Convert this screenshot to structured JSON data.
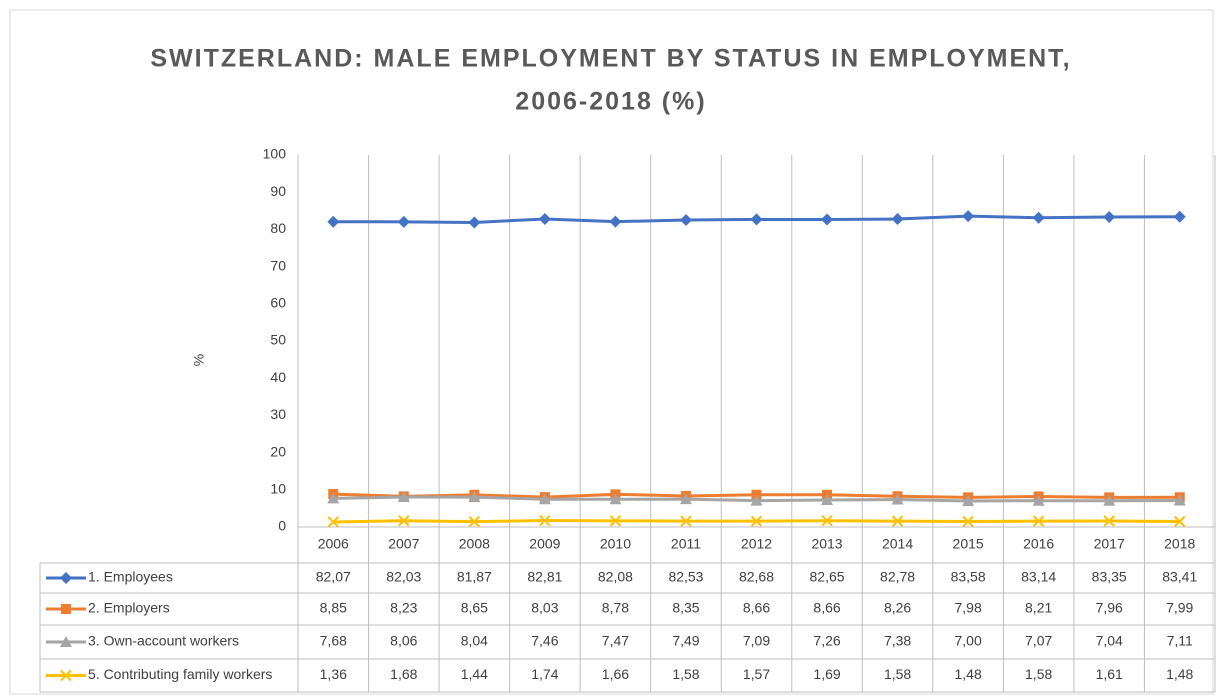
{
  "chart_data": {
    "type": "line",
    "title": [
      "SWITZERLAND: MALE EMPLOYMENT BY STATUS IN EMPLOYMENT,",
      "2006-2018 (%)"
    ],
    "y_label": "%",
    "categories": [
      "2006",
      "2007",
      "2008",
      "2009",
      "2010",
      "2011",
      "2012",
      "2013",
      "2014",
      "2015",
      "2016",
      "2017",
      "2018"
    ],
    "ylim": [
      0,
      100
    ],
    "yticks": [
      0,
      10,
      20,
      30,
      40,
      50,
      60,
      70,
      80,
      90,
      100
    ],
    "series": [
      {
        "name": "1. Employees",
        "color": "#4472c4",
        "marker": "diamond",
        "values": [
          82.07,
          82.03,
          81.87,
          82.81,
          82.08,
          82.53,
          82.68,
          82.65,
          82.78,
          83.58,
          83.14,
          83.35,
          83.41
        ],
        "value_labels": [
          "82,07",
          "82,03",
          "81,87",
          "82,81",
          "82,08",
          "82,53",
          "82,68",
          "82,65",
          "82,78",
          "83,58",
          "83,14",
          "83,35",
          "83,41"
        ]
      },
      {
        "name": "2. Employers",
        "color": "#ed7d31",
        "marker": "square",
        "values": [
          8.85,
          8.23,
          8.65,
          8.03,
          8.78,
          8.35,
          8.66,
          8.66,
          8.26,
          7.98,
          8.21,
          7.96,
          7.99
        ],
        "value_labels": [
          "8,85",
          "8,23",
          "8,65",
          "8,03",
          "8,78",
          "8,35",
          "8,66",
          "8,66",
          "8,26",
          "7,98",
          "8,21",
          "7,96",
          "7,99"
        ]
      },
      {
        "name": "3. Own-account workers",
        "color": "#a5a5a5",
        "marker": "triangle",
        "values": [
          7.68,
          8.06,
          8.04,
          7.46,
          7.47,
          7.49,
          7.09,
          7.26,
          7.38,
          7.0,
          7.07,
          7.04,
          7.11
        ],
        "value_labels": [
          "7,68",
          "8,06",
          "8,04",
          "7,46",
          "7,47",
          "7,49",
          "7,09",
          "7,26",
          "7,38",
          "7,00",
          "7,07",
          "7,04",
          "7,11"
        ]
      },
      {
        "name": "5. Contributing family workers",
        "color": "#ffc000",
        "marker": "x",
        "values": [
          1.36,
          1.68,
          1.44,
          1.74,
          1.66,
          1.58,
          1.57,
          1.69,
          1.58,
          1.48,
          1.58,
          1.61,
          1.48
        ],
        "value_labels": [
          "1,36",
          "1,68",
          "1,44",
          "1,74",
          "1,66",
          "1,58",
          "1,57",
          "1,69",
          "1,58",
          "1,48",
          "1,58",
          "1,61",
          "1,48"
        ]
      }
    ]
  }
}
